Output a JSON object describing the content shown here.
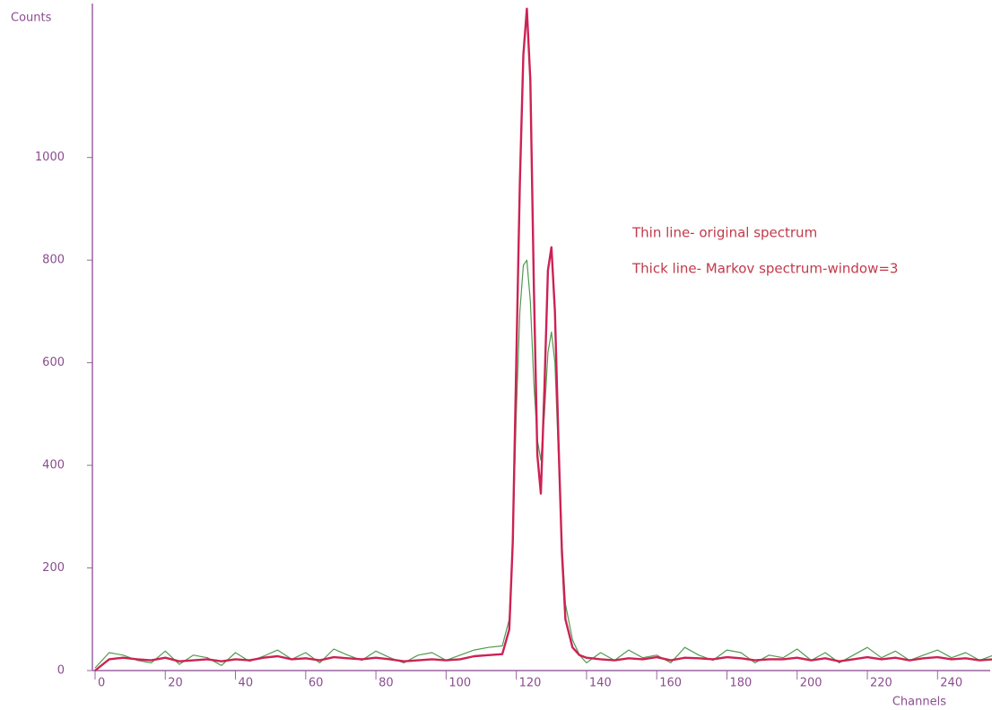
{
  "chart_data": {
    "type": "line",
    "y_label": "Counts",
    "x_label": "Channels",
    "annotations": [
      "Thin line- original spectrum",
      "Thick line- Markov spectrum-window=3"
    ],
    "x": [
      0,
      4,
      8,
      12,
      16,
      20,
      24,
      28,
      32,
      36,
      40,
      44,
      48,
      52,
      56,
      60,
      64,
      68,
      72,
      76,
      80,
      84,
      88,
      92,
      96,
      100,
      104,
      108,
      112,
      116,
      118,
      119,
      120,
      121,
      122,
      123,
      124,
      125,
      126,
      127,
      128,
      129,
      130,
      131,
      132,
      133,
      134,
      136,
      138,
      140,
      144,
      148,
      152,
      156,
      160,
      164,
      168,
      172,
      176,
      180,
      184,
      188,
      192,
      196,
      200,
      204,
      208,
      212,
      216,
      220,
      224,
      228,
      232,
      236,
      240,
      244,
      248,
      252,
      256
    ],
    "series": [
      {
        "name": "Thin line- original spectrum",
        "color": "#4f9a4f",
        "width": 1.2,
        "values": [
          5,
          35,
          30,
          20,
          15,
          38,
          12,
          30,
          25,
          10,
          35,
          18,
          28,
          40,
          22,
          35,
          15,
          42,
          30,
          20,
          38,
          25,
          15,
          30,
          35,
          20,
          30,
          40,
          45,
          48,
          100,
          250,
          500,
          700,
          790,
          800,
          720,
          560,
          450,
          410,
          500,
          620,
          660,
          600,
          420,
          250,
          130,
          60,
          30,
          15,
          35,
          20,
          40,
          25,
          30,
          15,
          45,
          30,
          20,
          40,
          35,
          15,
          30,
          25,
          42,
          20,
          35,
          15,
          30,
          45,
          25,
          38,
          20,
          30,
          40,
          25,
          35,
          20,
          30
        ]
      },
      {
        "name": "Thick line- Markov spectrum-window=3",
        "color": "#cc2255",
        "width": 2.4,
        "values": [
          0,
          22,
          25,
          22,
          20,
          25,
          18,
          20,
          22,
          18,
          22,
          20,
          25,
          28,
          22,
          24,
          20,
          26,
          24,
          22,
          25,
          22,
          18,
          20,
          22,
          20,
          22,
          28,
          30,
          32,
          80,
          250,
          600,
          950,
          1200,
          1290,
          1150,
          750,
          420,
          345,
          550,
          780,
          825,
          700,
          450,
          230,
          100,
          45,
          30,
          25,
          22,
          20,
          24,
          22,
          26,
          20,
          25,
          24,
          22,
          26,
          24,
          20,
          22,
          22,
          25,
          20,
          24,
          18,
          22,
          26,
          22,
          25,
          20,
          24,
          26,
          22,
          24,
          20,
          22
        ]
      }
    ],
    "xlim": [
      0,
      255
    ],
    "ylim": [
      0,
      1300
    ],
    "xticks": [
      0,
      20,
      40,
      60,
      80,
      100,
      120,
      140,
      160,
      180,
      200,
      220,
      240
    ],
    "yticks": [
      0,
      200,
      400,
      600,
      800,
      1000
    ],
    "axis_color": "#9b63a0"
  }
}
